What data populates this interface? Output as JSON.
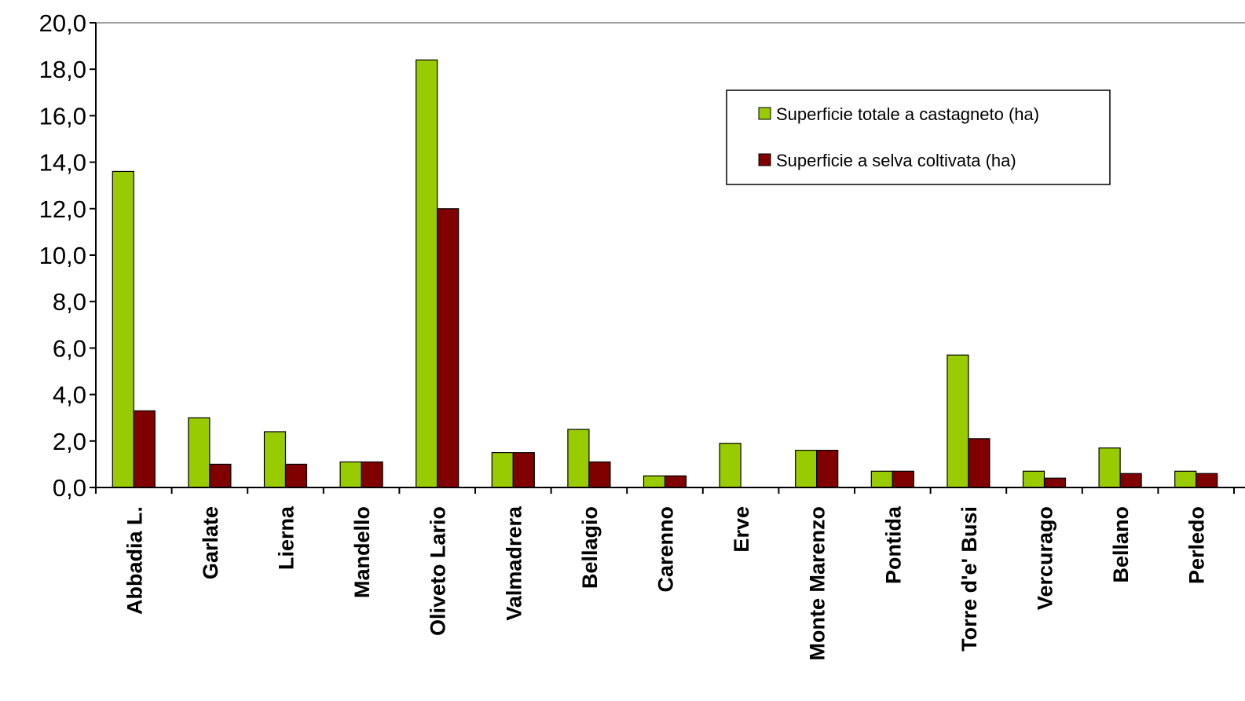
{
  "chart_data": {
    "type": "bar",
    "title": "",
    "xlabel": "",
    "ylabel": "",
    "ylim": [
      0,
      20
    ],
    "ytick_step": 2,
    "ytick_labels": [
      "0,0",
      "2,0",
      "4,0",
      "6,0",
      "8,0",
      "10,0",
      "12,0",
      "14,0",
      "16,0",
      "18,0",
      "20,0"
    ],
    "grid": false,
    "legend_position": "top-right",
    "categories": [
      "Abbadia L.",
      "Garlate",
      "Lierna",
      "Mandello",
      "Oliveto Lario",
      "Valmadrera",
      "Bellagio",
      "Carenno",
      "Erve",
      "Monte Marenzo",
      "Pontida",
      "Torre d'e' Busi",
      "Vercurago",
      "Bellano",
      "Perledo"
    ],
    "series": [
      {
        "name": "Superficie totale a castagneto (ha)",
        "color": "#99cc00",
        "values": [
          13.6,
          3.0,
          2.4,
          1.1,
          18.4,
          1.5,
          2.5,
          0.5,
          1.9,
          1.6,
          0.7,
          5.7,
          0.7,
          1.7,
          0.7
        ]
      },
      {
        "name": "Superficie a selva coltivata (ha)",
        "color": "#800000",
        "values": [
          3.3,
          1.0,
          1.0,
          1.1,
          12.0,
          1.5,
          1.1,
          0.5,
          0.0,
          1.6,
          0.7,
          2.1,
          0.4,
          0.6,
          0.6
        ]
      }
    ]
  }
}
